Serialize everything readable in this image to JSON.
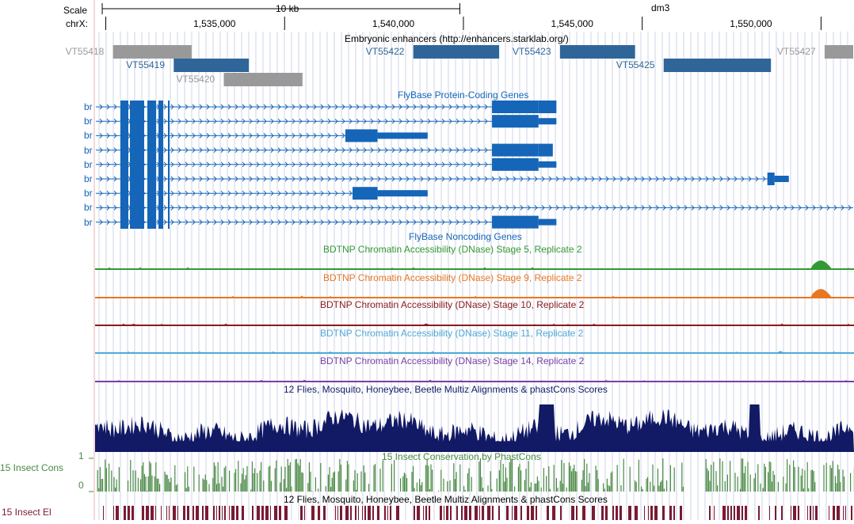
{
  "ruler": {
    "scale_label": "Scale",
    "chrom_label": "chrX:",
    "scale_bar_text": "10 kb",
    "assembly": "dm3",
    "positions": [
      {
        "label": "1,535,000",
        "pos": 1535000
      },
      {
        "label": "1,540,000",
        "pos": 1540000
      },
      {
        "label": "1,545,000",
        "pos": 1545000
      },
      {
        "label": "1,550,000",
        "pos": 1550000
      }
    ]
  },
  "view": {
    "start": 1530700,
    "end": 1551900
  },
  "colors": {
    "enhancer_active": "#2f6699",
    "enhancer_inactive": "#999999",
    "gene": "#1565b8",
    "stage5": "#339933",
    "stage9": "#e87722",
    "stage10": "#8b1a1a",
    "stage11": "#4fa9d5",
    "stage14": "#7a3fa3",
    "multiz": "#121a66",
    "phastcons": "#4a8a44",
    "elements": "#7a1a33",
    "left_border": "#e9b1b1"
  },
  "tracks": {
    "enhancers": {
      "title": "Embryonic enhancers (http://enhancers.starklab.org/)",
      "items": [
        {
          "name": "VT55418",
          "active": false,
          "start": 1531200,
          "end": 1533400,
          "row": 0
        },
        {
          "name": "VT55419",
          "active": true,
          "start": 1532900,
          "end": 1535000,
          "row": 1
        },
        {
          "name": "VT55420",
          "active": false,
          "start": 1534300,
          "end": 1536500,
          "row": 2
        },
        {
          "name": "VT55422",
          "active": true,
          "start": 1539600,
          "end": 1542000,
          "row": 0
        },
        {
          "name": "VT55423",
          "active": true,
          "start": 1543700,
          "end": 1545800,
          "row": 0
        },
        {
          "name": "VT55425",
          "active": true,
          "start": 1546600,
          "end": 1549600,
          "row": 1
        },
        {
          "name": "VT55427",
          "active": false,
          "start": 1551100,
          "end": 1551900,
          "row": 0
        }
      ]
    },
    "genes": {
      "title": "FlyBase Protein-Coding Genes",
      "transcripts": [
        {
          "name": "br",
          "end": 1543600,
          "exons": [
            [
              1541800,
              1543100,
              "thick"
            ],
            [
              1543100,
              1543600,
              "thick"
            ]
          ]
        },
        {
          "name": "br",
          "end": 1543600,
          "exons": [
            [
              1541800,
              1543100,
              "thick"
            ],
            [
              1543100,
              1543600,
              "thin"
            ]
          ]
        },
        {
          "name": "br",
          "end": 1540000,
          "exons": [
            [
              1537700,
              1538600,
              "thick"
            ],
            [
              1538600,
              1540000,
              "thin"
            ]
          ]
        },
        {
          "name": "br",
          "end": 1543500,
          "exons": [
            [
              1541800,
              1543100,
              "thick"
            ],
            [
              1543100,
              1543500,
              "thick"
            ]
          ]
        },
        {
          "name": "br",
          "end": 1543600,
          "exons": [
            [
              1541800,
              1543100,
              "thick"
            ],
            [
              1543100,
              1543600,
              "thin"
            ]
          ]
        },
        {
          "name": "br",
          "end": 1550100,
          "exons": [
            [
              1549500,
              1549700,
              "thick"
            ],
            [
              1549700,
              1550100,
              "thin"
            ]
          ]
        },
        {
          "name": "br",
          "end": 1540000,
          "exons": [
            [
              1537900,
              1538600,
              "thick"
            ],
            [
              1538600,
              1540000,
              "thin"
            ]
          ]
        },
        {
          "name": "br",
          "end": 1551900,
          "exons": []
        },
        {
          "name": "br",
          "end": 1543600,
          "exons": [
            [
              1541800,
              1543100,
              "thick"
            ],
            [
              1543100,
              1543600,
              "thin"
            ]
          ]
        }
      ]
    },
    "noncoding": {
      "title": "FlyBase Noncoding Genes"
    },
    "dnase": [
      {
        "key": "stage5",
        "title": "BDTNP Chromatin Accessibility (DNase) Stage 5, Replicate 2"
      },
      {
        "key": "stage9",
        "title": "BDTNP Chromatin Accessibility (DNase) Stage 9, Replicate 2"
      },
      {
        "key": "stage10",
        "title": "BDTNP Chromatin Accessibility (DNase) Stage 10, Replicate 2"
      },
      {
        "key": "stage11",
        "title": "BDTNP Chromatin Accessibility (DNase) Stage 11, Replicate 2"
      },
      {
        "key": "stage14",
        "title": "BDTNP Chromatin Accessibility (DNase) Stage 14, Replicate 2"
      }
    ],
    "multiz": {
      "title": "12 Flies, Mosquito, Honeybee, Beetle Multiz Alignments & phastCons Scores"
    },
    "phastcons": {
      "title": "15 Insect Conservation by PhastCons",
      "left_label": "15 Insect Cons",
      "axis_max": "1",
      "axis_min": "0"
    },
    "elements": {
      "title": "12 Flies, Mosquito, Honeybee, Beetle Multiz Alignments & phastCons Scores",
      "left_label": "15 Insect El"
    }
  }
}
